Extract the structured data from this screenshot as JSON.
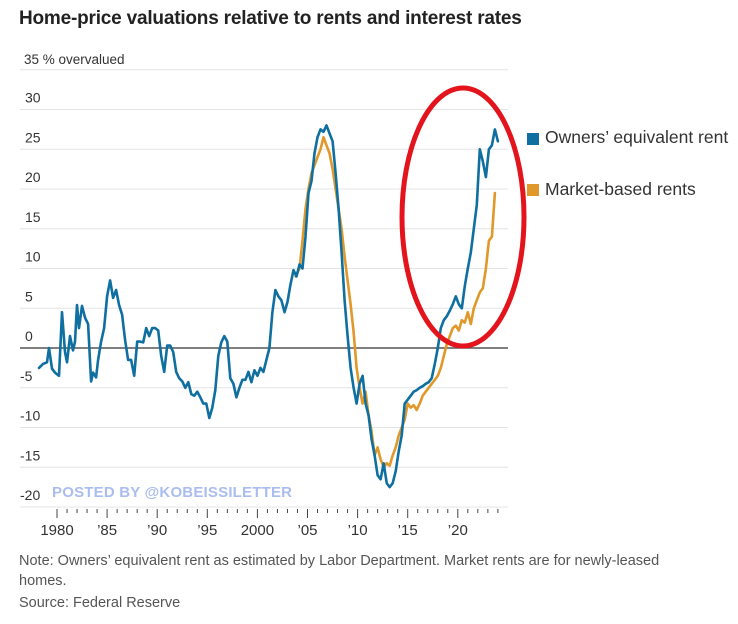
{
  "chart_data": {
    "type": "line",
    "title": "Home-price valuations relative to rents and interest rates",
    "ylabel": "% overvalued",
    "top_tick_label": "35 % overvalued",
    "ylim": [
      -20,
      35
    ],
    "yticks": [
      35,
      30,
      25,
      20,
      15,
      10,
      5,
      0,
      -5,
      -10,
      -15,
      -20
    ],
    "ytick_labels": [
      "35 % overvalued",
      "30",
      "25",
      "20",
      "15",
      "10",
      "5",
      "0",
      "-5",
      "-10",
      "-15",
      "-20"
    ],
    "xlim": [
      1977.5,
      2024.8
    ],
    "xticks": [
      1980,
      1985,
      1990,
      1995,
      2000,
      2005,
      2010,
      2015,
      2020
    ],
    "xtick_labels": [
      "1980",
      "’85",
      "’90",
      "’95",
      "2000",
      "’05",
      "’10",
      "’15",
      "’20"
    ],
    "grid": true,
    "legend_position": "right",
    "series": [
      {
        "name": "Owners’ equivalent rent",
        "color": "#0e6fa0",
        "x": [
          1978.2,
          1978.6,
          1979.0,
          1979.2,
          1979.5,
          1979.8,
          1980.2,
          1980.5,
          1980.8,
          1981.0,
          1981.3,
          1981.6,
          1981.8,
          1982.0,
          1982.2,
          1982.5,
          1982.8,
          1983.1,
          1983.4,
          1983.6,
          1983.9,
          1984.1,
          1984.4,
          1984.7,
          1985.0,
          1985.3,
          1985.6,
          1985.9,
          1986.2,
          1986.5,
          1986.8,
          1987.1,
          1987.4,
          1987.7,
          1988.0,
          1988.3,
          1988.6,
          1988.9,
          1989.2,
          1989.5,
          1989.8,
          1990.1,
          1990.4,
          1990.7,
          1991.0,
          1991.3,
          1991.6,
          1991.9,
          1992.2,
          1992.5,
          1992.8,
          1993.1,
          1993.4,
          1993.7,
          1994.0,
          1994.3,
          1994.6,
          1994.9,
          1995.2,
          1995.5,
          1995.8,
          1996.1,
          1996.4,
          1996.7,
          1997.0,
          1997.3,
          1997.6,
          1997.9,
          1998.2,
          1998.5,
          1998.8,
          1999.1,
          1999.4,
          1999.7,
          2000.0,
          2000.3,
          2000.6,
          2000.9,
          2001.2,
          2001.5,
          2001.8,
          2002.1,
          2002.4,
          2002.7,
          2003.0,
          2003.3,
          2003.6,
          2003.9,
          2004.2,
          2004.5,
          2004.8,
          2005.1,
          2005.4,
          2005.7,
          2006.0,
          2006.3,
          2006.6,
          2006.9,
          2007.2,
          2007.5,
          2007.8,
          2008.1,
          2008.4,
          2008.7,
          2009.0,
          2009.3,
          2009.6,
          2009.9,
          2010.2,
          2010.5,
          2010.8,
          2011.1,
          2011.4,
          2011.7,
          2012.0,
          2012.3,
          2012.6,
          2012.9,
          2013.2,
          2013.5,
          2013.8,
          2014.1,
          2014.4,
          2014.7,
          2015.0,
          2015.3,
          2015.6,
          2015.9,
          2016.2,
          2016.5,
          2016.8,
          2017.1,
          2017.4,
          2017.7,
          2018.0,
          2018.3,
          2018.6,
          2018.9,
          2019.2,
          2019.5,
          2019.8,
          2020.1,
          2020.4,
          2020.7,
          2021.0,
          2021.3,
          2021.6,
          2021.9,
          2022.2,
          2022.5,
          2022.8,
          2023.1,
          2023.4,
          2023.7,
          2024.0
        ],
        "y": [
          -2.5,
          -2.0,
          -1.8,
          0.0,
          -2.6,
          -3.1,
          -3.5,
          4.5,
          -0.5,
          -1.8,
          1.5,
          -0.3,
          0.8,
          5.4,
          2.5,
          5.3,
          3.8,
          3.0,
          -4.2,
          -3.1,
          -3.7,
          -1.5,
          0.8,
          2.5,
          6.5,
          8.5,
          6.3,
          7.3,
          5.4,
          4.2,
          1.0,
          -1.5,
          -1.5,
          -3.5,
          0.8,
          0.8,
          0.7,
          2.5,
          1.5,
          2.5,
          2.5,
          2.2,
          -1.0,
          -3.0,
          0.3,
          0.3,
          -0.5,
          -3.0,
          -3.8,
          -4.2,
          -5.0,
          -4.3,
          -5.8,
          -6.0,
          -5.5,
          -6.2,
          -7.0,
          -7.0,
          -8.8,
          -7.5,
          -5.3,
          -1.0,
          0.7,
          1.5,
          0.8,
          -3.8,
          -4.5,
          -6.2,
          -5.0,
          -4.0,
          -4.0,
          -3.0,
          -4.3,
          -2.8,
          -3.5,
          -2.5,
          -3.0,
          -1.5,
          0.0,
          4.5,
          7.3,
          6.5,
          6.0,
          4.5,
          5.8,
          8.0,
          9.8,
          9.0,
          10.5,
          10.0,
          14.0,
          19.5,
          21.0,
          24.5,
          26.5,
          27.5,
          27.2,
          28.0,
          27.0,
          26.0,
          22.0,
          17.5,
          12.0,
          6.0,
          1.5,
          -2.5,
          -5.0,
          -7.0,
          -4.5,
          -3.5,
          -7.0,
          -8.5,
          -11.5,
          -13.5,
          -16.0,
          -16.5,
          -14.5,
          -17.0,
          -17.5,
          -17.0,
          -15.5,
          -13.0,
          -11.0,
          -7.0,
          -6.5,
          -6.0,
          -5.5,
          -5.3,
          -5.0,
          -4.8,
          -4.5,
          -4.3,
          -3.8,
          -2.0,
          0.0,
          2.5,
          3.5,
          4.0,
          4.7,
          5.5,
          6.5,
          5.5,
          5.0,
          7.8,
          10.0,
          12.0,
          15.0,
          18.0,
          25.0,
          23.5,
          21.5,
          25.0,
          25.5,
          27.5,
          26.0
        ]
      },
      {
        "name": "Market-based rents",
        "color": "#e0982a",
        "x": [
          2003.8,
          2004.2,
          2004.5,
          2004.8,
          2005.1,
          2005.4,
          2005.7,
          2006.0,
          2006.3,
          2006.6,
          2006.9,
          2007.2,
          2007.5,
          2007.8,
          2008.1,
          2008.4,
          2008.7,
          2009.0,
          2009.3,
          2009.6,
          2009.9,
          2010.2,
          2010.5,
          2010.8,
          2011.1,
          2011.4,
          2011.7,
          2012.0,
          2012.3,
          2012.6,
          2012.9,
          2013.2,
          2013.5,
          2013.8,
          2014.1,
          2014.4,
          2014.7,
          2015.0,
          2015.3,
          2015.6,
          2015.9,
          2016.2,
          2016.5,
          2016.8,
          2017.1,
          2017.4,
          2017.7,
          2018.0,
          2018.3,
          2018.6,
          2018.9,
          2019.2,
          2019.5,
          2019.8,
          2020.1,
          2020.4,
          2020.7,
          2021.0,
          2021.3,
          2021.6,
          2021.9,
          2022.2,
          2022.5,
          2022.8,
          2023.1,
          2023.4,
          2023.7
        ],
        "y": [
          9.0,
          10.0,
          13.5,
          17.5,
          20.0,
          22.0,
          23.0,
          24.0,
          25.0,
          26.5,
          25.5,
          24.5,
          22.5,
          20.0,
          17.5,
          15.0,
          11.5,
          8.5,
          5.5,
          2.0,
          -2.5,
          -5.0,
          -7.0,
          -5.5,
          -8.5,
          -10.5,
          -13.5,
          -12.5,
          -14.0,
          -15.0,
          -14.5,
          -14.8,
          -13.5,
          -12.5,
          -11.0,
          -10.0,
          -9.0,
          -7.0,
          -7.5,
          -7.2,
          -7.8,
          -7.0,
          -6.0,
          -5.5,
          -5.0,
          -4.5,
          -4.0,
          -3.5,
          -2.5,
          -1.0,
          0.5,
          1.5,
          2.5,
          2.8,
          2.2,
          3.5,
          3.2,
          4.5,
          3.0,
          5.0,
          6.0,
          7.0,
          7.5,
          10.0,
          13.5,
          14.0,
          19.5
        ]
      }
    ],
    "annotations": [
      {
        "type": "ellipse",
        "color": "#e3141c",
        "around": "2018–2024 surge"
      }
    ]
  },
  "legend": [
    {
      "label": "Owners’ equivalent rent",
      "color": "#0e6fa0"
    },
    {
      "label": "Market-based rents",
      "color": "#e0982a"
    }
  ],
  "watermark": "POSTED BY @KOBEISSILETTER",
  "footnote": {
    "note": "Note: Owners’ equivalent rent as estimated by Labor Department. Market rents are for newly-leased homes.",
    "note_line1": "Note: Owners’ equivalent rent as estimated by Labor Department. Market rents are for newly-leased",
    "note_line2": "homes.",
    "source": "Source: Federal Reserve"
  }
}
